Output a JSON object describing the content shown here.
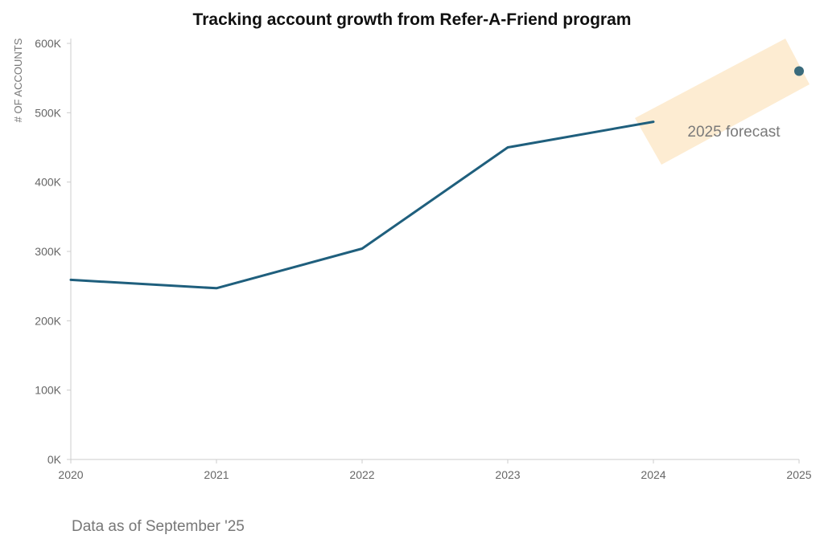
{
  "chart_data": {
    "type": "line",
    "title": "Tracking account growth from Refer-A-Friend program",
    "ylabel": "# OF ACCOUNTS",
    "xlabel": "",
    "x": [
      "2020",
      "2021",
      "2022",
      "2023",
      "2024"
    ],
    "values": [
      259000,
      247000,
      304000,
      450000,
      487000
    ],
    "forecast": {
      "x": "2025",
      "value": 560000,
      "label": "2025 forecast"
    },
    "x_ticks": [
      "2020",
      "2021",
      "2022",
      "2023",
      "2024",
      "2025"
    ],
    "y_ticks": [
      0,
      100000,
      200000,
      300000,
      400000,
      500000,
      600000
    ],
    "y_tick_labels": [
      "0K",
      "100K",
      "200K",
      "300K",
      "400K",
      "500K",
      "600K"
    ],
    "ylim": [
      0,
      600000
    ],
    "grid": false,
    "colors": {
      "line": "#1f5f7d",
      "forecast_point": "#3a6b7c",
      "highlight": "#fdecd2",
      "axis": "#cccccc"
    }
  },
  "footnote": "Data as of September  '25"
}
